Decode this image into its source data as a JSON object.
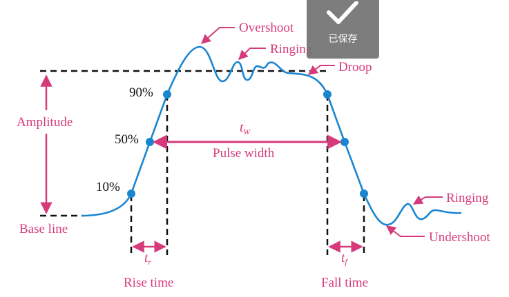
{
  "labels": {
    "overshoot": "Overshoot",
    "ringing_top": "Ringing",
    "droop": "Droop",
    "amplitude": "Amplitude",
    "baseline": "Base line",
    "p90": "90%",
    "p50": "50%",
    "p10": "10%",
    "tw": "t",
    "tw_sub": "W",
    "pulse_width": "Pulse width",
    "tr": "t",
    "tr_sub": "r",
    "tf": "t",
    "tf_sub": "f",
    "rise_time": "Rise time",
    "fall_time": "Fall time",
    "ringing_bottom": "Ringing",
    "undershoot": "Undershoot"
  },
  "toast": {
    "icon": "checkmark-icon",
    "text": "已保存"
  },
  "colors": {
    "waveform": "#1a86d0",
    "annotation": "#d63a7a",
    "dashed": "#111111",
    "toast_bg": "#737373"
  }
}
